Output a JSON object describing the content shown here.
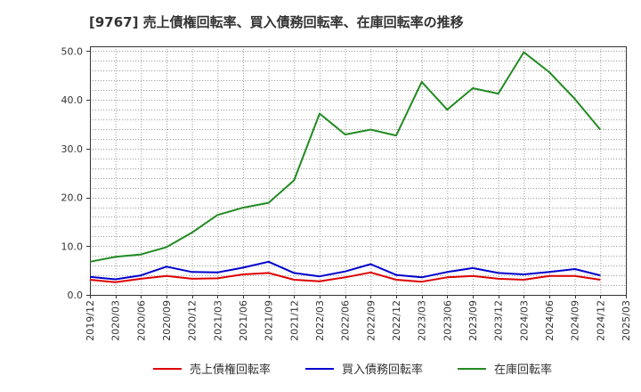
{
  "chart_data": {
    "type": "line",
    "title": "[9767]  売上債権回転率、買入債務回転率、在庫回転率の推移",
    "xlabel": "",
    "ylabel": "",
    "ylim": [
      0,
      51
    ],
    "yticks": [
      0.0,
      10.0,
      20.0,
      30.0,
      40.0,
      50.0
    ],
    "ytick_labels": [
      "0.0",
      "10.0",
      "20.0",
      "30.0",
      "40.0",
      "50.0"
    ],
    "grid": true,
    "legend_position": "bottom",
    "x": [
      "2019/12",
      "2020/03",
      "2020/06",
      "2020/09",
      "2020/12",
      "2021/03",
      "2021/06",
      "2021/09",
      "2021/12",
      "2022/03",
      "2022/06",
      "2022/09",
      "2022/12",
      "2023/03",
      "2023/06",
      "2023/09",
      "2023/12",
      "2024/03",
      "2024/06",
      "2024/09",
      "2024/12",
      "2025/03"
    ],
    "series": [
      {
        "name": "売上債権回転率",
        "color": "#dd0000",
        "values": [
          3.1,
          2.6,
          3.3,
          3.9,
          3.3,
          3.4,
          4.2,
          4.5,
          3.1,
          2.8,
          3.6,
          4.6,
          3.1,
          2.7,
          3.6,
          3.9,
          3.3,
          3.1,
          3.9,
          3.9,
          3.1,
          null
        ]
      },
      {
        "name": "買入債務回転率",
        "color": "#0000cc",
        "values": [
          3.7,
          3.2,
          4.0,
          5.8,
          4.7,
          4.6,
          5.6,
          6.8,
          4.5,
          3.8,
          4.8,
          6.3,
          4.1,
          3.6,
          4.7,
          5.5,
          4.5,
          4.2,
          4.7,
          5.3,
          4.0,
          null
        ]
      },
      {
        "name": "在庫回転率",
        "color": "#228b22",
        "values": [
          6.8,
          7.8,
          8.3,
          9.8,
          12.8,
          16.4,
          17.9,
          18.9,
          23.5,
          37.2,
          32.9,
          33.9,
          32.7,
          43.7,
          38.0,
          42.4,
          41.3,
          49.8,
          45.7,
          40.2,
          33.9,
          null
        ]
      }
    ]
  }
}
